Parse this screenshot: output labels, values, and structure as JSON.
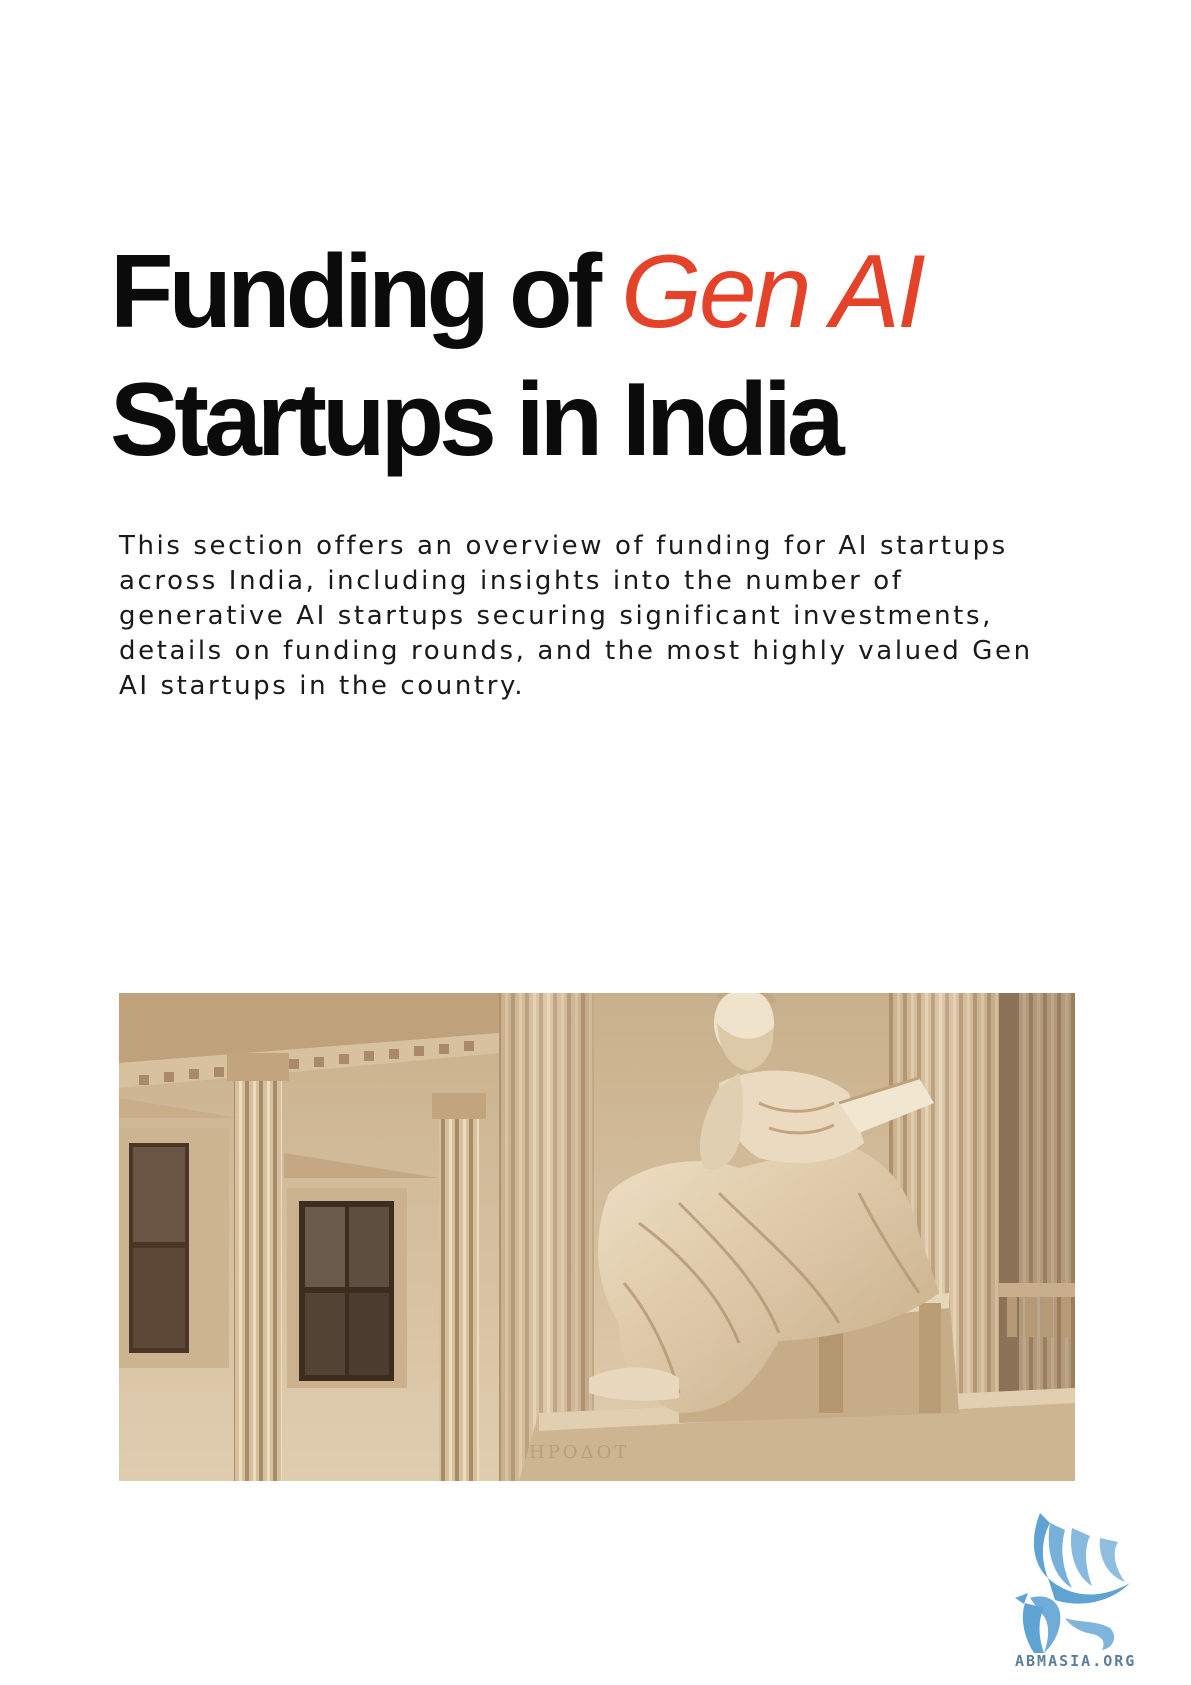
{
  "title": {
    "part1": "Funding of ",
    "accent": "Gen AI",
    "part2": "Startups in India"
  },
  "intro": "This section offers an overview of funding for AI startups across India, including insights into the number of generative AI startups securing significant investments, details on funding rounds, and the most highly valued Gen AI startups in the country.",
  "logo": {
    "text": "ABMASIA.ORG",
    "color": "#5fa3d3"
  },
  "colors": {
    "accent": "#e4432a",
    "text": "#0b0b0b"
  }
}
